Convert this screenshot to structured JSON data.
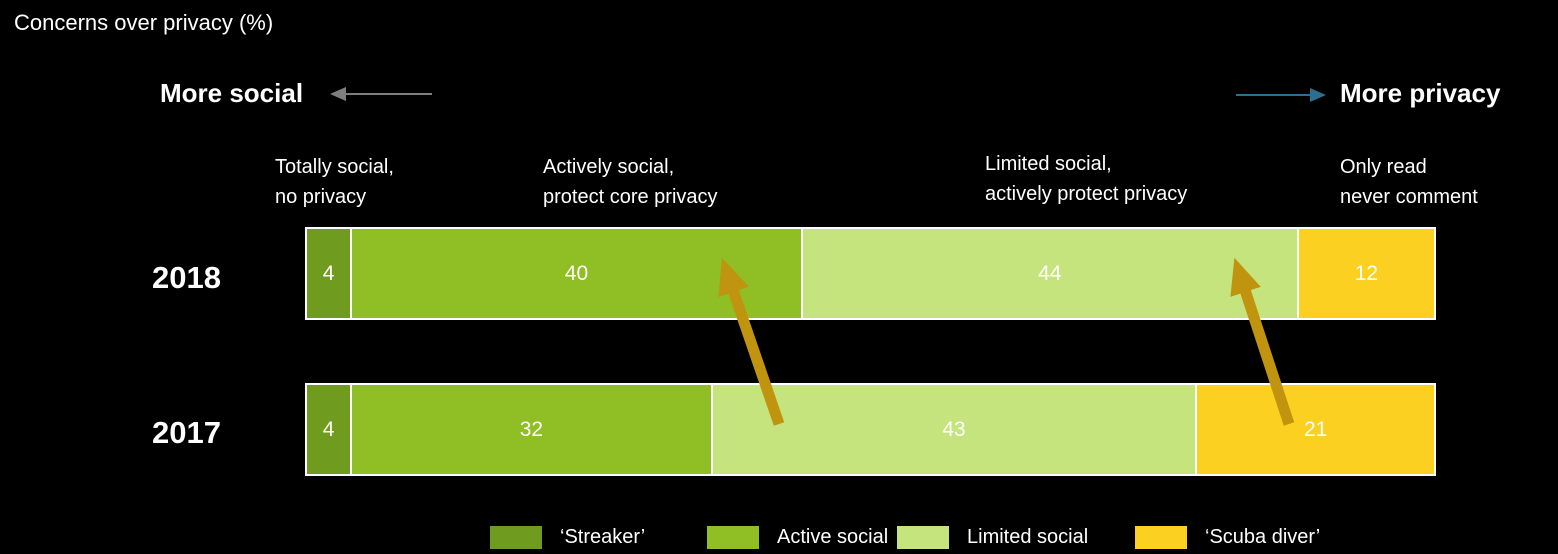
{
  "title": "Concerns over privacy (%)",
  "axis": {
    "left_label": "More social",
    "right_label": "More privacy"
  },
  "colors": {
    "background": "#000000",
    "text": "#FFFFFF",
    "bar_border": "#FFFFFF",
    "shift_arrow": "#C0940E",
    "more_social_arrow": "#7F7F7F",
    "more_privacy_arrow": "#2E6F91"
  },
  "chart_data": {
    "type": "bar",
    "stacked": true,
    "orientation": "horizontal",
    "title": "Concerns over privacy (%)",
    "value_unit": "%",
    "xlim": [
      0,
      100
    ],
    "categories": [
      "2018",
      "2017"
    ],
    "segment_headers": [
      "Totally social,\nno privacy",
      "Actively social,\nprotect core privacy",
      "Limited social,\nactively protect privacy",
      "Only read\nnever comment"
    ],
    "series": [
      {
        "key": "streaker",
        "name": "‘Streaker’",
        "color": "#6F9C1E",
        "values": [
          4,
          4
        ]
      },
      {
        "key": "active-social",
        "name": "Active social",
        "color": "#8FBE25",
        "values": [
          40,
          32
        ]
      },
      {
        "key": "limited-social",
        "name": "Limited social",
        "color": "#C6E47D",
        "values": [
          44,
          43
        ]
      },
      {
        "key": "scuba-diver",
        "name": "‘Scuba diver’",
        "color": "#FCD021",
        "values": [
          12,
          21
        ]
      }
    ],
    "annotations": [
      {
        "name": "shift-arrow-active-social",
        "meaning": "shift from 2017 toward Active social in 2018"
      },
      {
        "name": "shift-arrow-limited-social",
        "meaning": "shift from 2017 toward Limited social in 2018"
      }
    ]
  }
}
